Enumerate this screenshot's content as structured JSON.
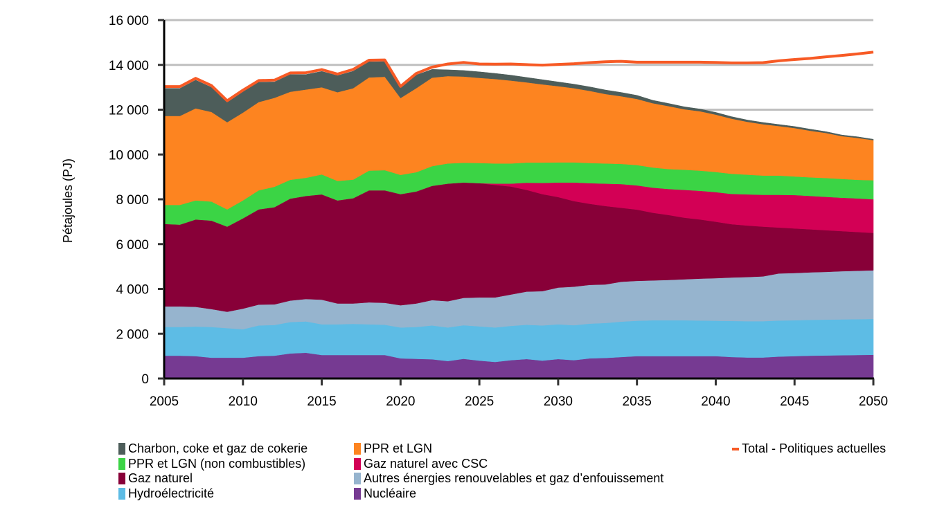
{
  "chart_data": {
    "type": "area",
    "stacked": true,
    "title": "",
    "xlabel": "",
    "ylabel": "Pétajoules (PJ)",
    "xlim": [
      2005,
      2050
    ],
    "ylim": [
      0,
      16000
    ],
    "grid": "horizontal",
    "x_ticks": [
      2005,
      2010,
      2015,
      2020,
      2025,
      2030,
      2035,
      2040,
      2045,
      2050
    ],
    "y_ticks": [
      0,
      2000,
      4000,
      6000,
      8000,
      10000,
      12000,
      14000,
      16000
    ],
    "y_tick_labels": [
      "0",
      "2 000",
      "4 000",
      "6 000",
      "8 000",
      "10 000",
      "12 000",
      "14 000",
      "16 000"
    ],
    "x": [
      2005,
      2006,
      2007,
      2008,
      2009,
      2010,
      2011,
      2012,
      2013,
      2014,
      2015,
      2016,
      2017,
      2018,
      2019,
      2020,
      2021,
      2022,
      2023,
      2024,
      2025,
      2026,
      2027,
      2028,
      2029,
      2030,
      2031,
      2032,
      2033,
      2034,
      2035,
      2036,
      2037,
      2038,
      2039,
      2040,
      2041,
      2042,
      2043,
      2044,
      2045,
      2046,
      2047,
      2048,
      2049,
      2050
    ],
    "legend_position": "bottom",
    "series": [
      {
        "name": "Nucléaire",
        "color": "#763A92",
        "values": [
          1020,
          1020,
          1000,
          930,
          930,
          930,
          1000,
          1020,
          1120,
          1150,
          1050,
          1050,
          1050,
          1050,
          1050,
          900,
          880,
          860,
          780,
          880,
          800,
          740,
          820,
          870,
          800,
          870,
          820,
          900,
          920,
          960,
          1000,
          1000,
          1000,
          1000,
          1000,
          1000,
          960,
          940,
          940,
          980,
          1000,
          1020,
          1030,
          1040,
          1050,
          1060
        ]
      },
      {
        "name": "Hydroélectricité",
        "color": "#5DBCE5",
        "values": [
          1280,
          1280,
          1320,
          1370,
          1320,
          1270,
          1370,
          1370,
          1400,
          1400,
          1370,
          1370,
          1390,
          1370,
          1350,
          1380,
          1420,
          1510,
          1500,
          1500,
          1530,
          1540,
          1530,
          1530,
          1570,
          1550,
          1560,
          1550,
          1560,
          1580,
          1580,
          1600,
          1600,
          1600,
          1590,
          1580,
          1610,
          1620,
          1620,
          1610,
          1600,
          1600,
          1600,
          1600,
          1600,
          1600
        ]
      },
      {
        "name": "Autres énergies renouvelables et gaz d’enfouissement",
        "color": "#96B4CE",
        "values": [
          920,
          920,
          880,
          800,
          730,
          920,
          930,
          920,
          960,
          1000,
          1100,
          930,
          910,
          980,
          980,
          990,
          1050,
          1130,
          1170,
          1220,
          1290,
          1340,
          1400,
          1480,
          1530,
          1640,
          1720,
          1730,
          1720,
          1780,
          1780,
          1780,
          1800,
          1830,
          1870,
          1900,
          1940,
          1970,
          2000,
          2100,
          2110,
          2120,
          2130,
          2150,
          2160,
          2170
        ]
      },
      {
        "name": "Gaz naturel",
        "color": "#880038",
        "values": [
          3680,
          3650,
          3900,
          3950,
          3800,
          4030,
          4250,
          4340,
          4550,
          4600,
          4700,
          4600,
          4700,
          5000,
          5020,
          4960,
          5000,
          5100,
          5250,
          5150,
          5100,
          5020,
          4820,
          4540,
          4330,
          4040,
          3820,
          3620,
          3500,
          3300,
          3180,
          3020,
          2900,
          2750,
          2640,
          2520,
          2380,
          2300,
          2220,
          2050,
          1990,
          1920,
          1860,
          1790,
          1730,
          1670
        ]
      },
      {
        "name": "Gaz naturel avec CSC",
        "color": "#D30055",
        "values": [
          0,
          0,
          0,
          0,
          0,
          0,
          0,
          0,
          0,
          0,
          0,
          0,
          0,
          0,
          0,
          0,
          0,
          0,
          0,
          0,
          0,
          60,
          130,
          320,
          500,
          650,
          830,
          920,
          1000,
          1060,
          1080,
          1120,
          1160,
          1240,
          1280,
          1320,
          1350,
          1390,
          1420,
          1460,
          1490,
          1490,
          1490,
          1490,
          1500,
          1500
        ]
      },
      {
        "name": "PPR et LGN (non combustibles)",
        "color": "#3BD445",
        "values": [
          850,
          880,
          850,
          850,
          770,
          800,
          850,
          910,
          840,
          810,
          890,
          870,
          830,
          880,
          900,
          860,
          860,
          880,
          900,
          880,
          900,
          900,
          900,
          900,
          910,
          900,
          900,
          900,
          900,
          900,
          910,
          900,
          890,
          900,
          900,
          900,
          900,
          880,
          860,
          860,
          830,
          830,
          840,
          840,
          830,
          850
        ]
      },
      {
        "name": "PPR et LGN",
        "color": "#FD8420",
        "values": [
          3970,
          3970,
          4110,
          4000,
          3890,
          3920,
          3940,
          3970,
          3930,
          3940,
          3890,
          3960,
          4080,
          4160,
          4170,
          3430,
          3750,
          3950,
          3900,
          3850,
          3800,
          3770,
          3700,
          3580,
          3490,
          3400,
          3310,
          3220,
          3100,
          3020,
          2950,
          2870,
          2810,
          2700,
          2650,
          2560,
          2460,
          2360,
          2290,
          2210,
          2160,
          2080,
          2010,
          1910,
          1870,
          1790
        ]
      },
      {
        "name": "Charbon, coke et gaz de cokerie",
        "color": "#4D5D5A",
        "values": [
          1230,
          1230,
          1260,
          1100,
          890,
          930,
          890,
          710,
          770,
          670,
          710,
          740,
          760,
          700,
          680,
          450,
          590,
          370,
          280,
          270,
          270,
          250,
          240,
          220,
          210,
          190,
          180,
          180,
          180,
          170,
          160,
          130,
          120,
          110,
          100,
          100,
          90,
          80,
          80,
          70,
          70,
          70,
          60,
          50,
          50,
          40
        ]
      }
    ],
    "lines": [
      {
        "name": "Total - Politiques actuelles",
        "color": "#F75A25",
        "values": [
          13030,
          13030,
          13400,
          13080,
          12400,
          12870,
          13300,
          13320,
          13640,
          13650,
          13790,
          13590,
          13800,
          14210,
          14220,
          13040,
          13620,
          13900,
          14040,
          14110,
          14040,
          14030,
          14040,
          14010,
          13990,
          14020,
          14050,
          14100,
          14140,
          14160,
          14120,
          14120,
          14120,
          14120,
          14120,
          14110,
          14090,
          14090,
          14100,
          14180,
          14240,
          14290,
          14360,
          14420,
          14490,
          14570
        ]
      }
    ]
  },
  "legend": {
    "col1": [
      {
        "label": "Charbon, coke et gaz de cokerie",
        "color": "#4D5D5A"
      },
      {
        "label": "PPR et LGN (non combustibles)",
        "color": "#3BD445"
      },
      {
        "label": "Gaz naturel",
        "color": "#880038"
      },
      {
        "label": "Hydroélectricité",
        "color": "#5DBCE5"
      }
    ],
    "col2": [
      {
        "label": "PPR et LGN",
        "color": "#FD8420"
      },
      {
        "label": "Gaz naturel avec CSC",
        "color": "#D30055"
      },
      {
        "label": "Autres énergies renouvelables et gaz d’enfouissement",
        "color": "#96B4CE"
      },
      {
        "label": "Nucléaire",
        "color": "#763A92"
      }
    ],
    "col3": [
      {
        "label": "Total - Politiques actuelles",
        "color": "#F75A25"
      }
    ]
  }
}
